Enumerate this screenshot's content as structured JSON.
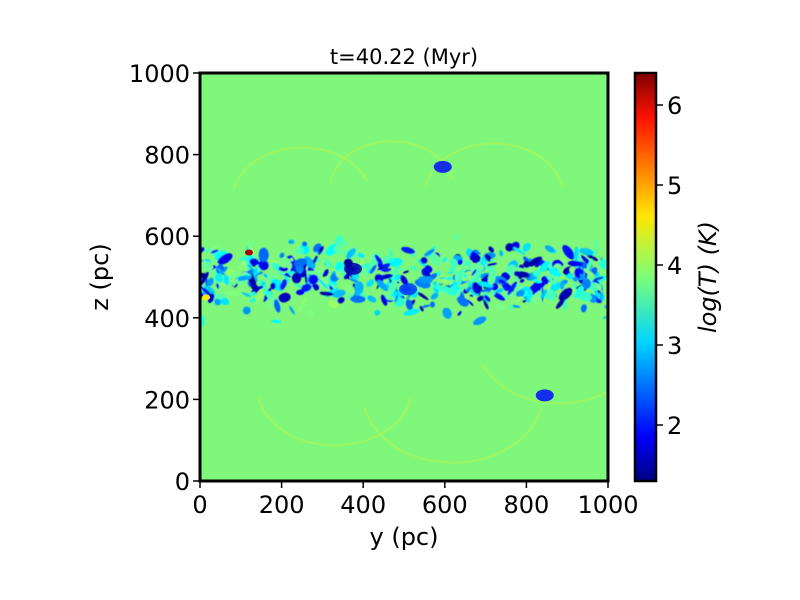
{
  "chart_data": {
    "type": "heatmap",
    "title": "t=40.22 (Myr)",
    "xlabel": "y (pc)",
    "ylabel": "z (pc)",
    "xlim": [
      0,
      1000
    ],
    "ylim": [
      0,
      1000
    ],
    "xticks": [
      "0",
      "200",
      "400",
      "600",
      "800",
      "1000"
    ],
    "yticks": [
      "0",
      "200",
      "400",
      "600",
      "800",
      "1000"
    ],
    "xtick_values": [
      0,
      200,
      400,
      600,
      800,
      1000
    ],
    "ytick_values": [
      0,
      200,
      400,
      600,
      800,
      1000
    ],
    "colorbar": {
      "label": "log(T) (K)",
      "colormap": "jet",
      "range": [
        1.3,
        6.4
      ],
      "ticks": [
        "2",
        "3",
        "4",
        "5",
        "6"
      ],
      "tick_values": [
        2,
        3,
        4,
        5,
        6
      ]
    },
    "background_value": 4.0,
    "background_color": "#7ff77a",
    "features": {
      "cold_layer_z": [
        380,
        620
      ],
      "hot_spots": [
        {
          "y": 120,
          "z": 560,
          "value": 6.2
        },
        {
          "y": 15,
          "z": 450,
          "value": 4.6
        }
      ],
      "cold_clumps": [
        {
          "y": 375,
          "z": 520,
          "value": 1.5
        },
        {
          "y": 510,
          "z": 470,
          "value": 2.2
        },
        {
          "y": 845,
          "z": 210,
          "value": 2.0
        },
        {
          "y": 595,
          "z": 770,
          "value": 2.0
        }
      ]
    }
  }
}
